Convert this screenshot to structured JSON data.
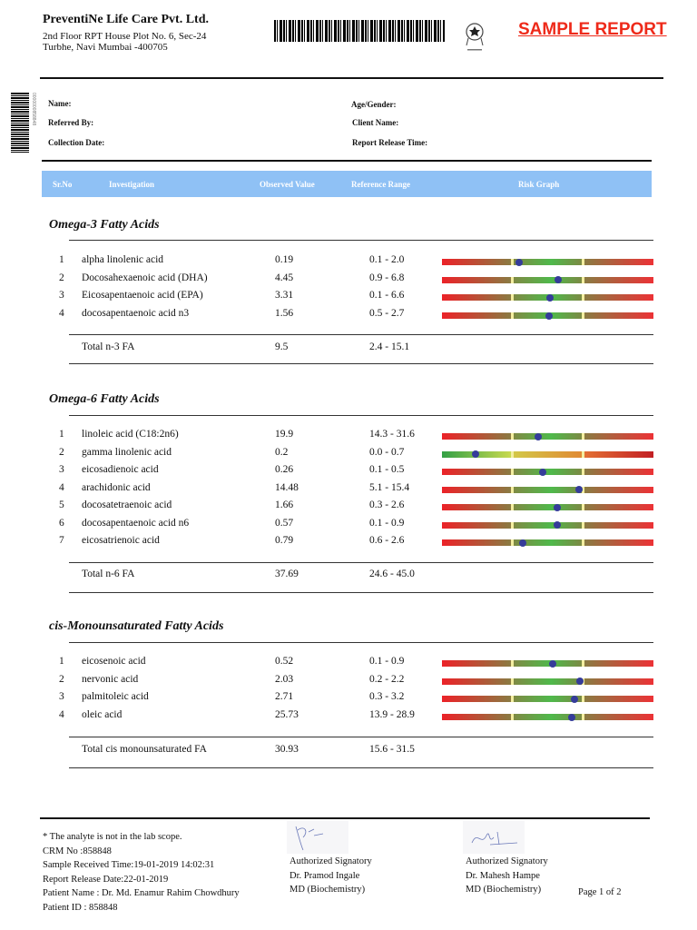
{
  "header": {
    "company": "PreventiNe Life Care Pvt. Ltd.",
    "address": "2nd Floor RPT House Plot No. 6, Sec-24 Turbhe, Navi Mumbai -400705",
    "stamp": "SAMPLE REPORT",
    "side_barcode_number": "0000000858848"
  },
  "patient_labels": {
    "name": "Name:",
    "referred_by": "Referred By:",
    "collection_date": "Collection Date:",
    "age_gender": "Age/Gender:",
    "client_name": "Client Name:",
    "release_time": "Report Release Time:"
  },
  "table_header": {
    "sr": "Sr.No",
    "investigation": "Investigation",
    "observed": "Observed Value",
    "reference": "Reference Range",
    "risk": "Risk Graph"
  },
  "risk_colors": {
    "low": "#ec2228",
    "normal": "#4fb94b",
    "marker": "#353c9a"
  },
  "sections": [
    {
      "title": "Omega-3 Fatty Acids",
      "rows": [
        {
          "sr": "1",
          "name": "alpha linolenic acid",
          "value": "0.19",
          "range": "0.1 - 2.0",
          "marker": 0.365,
          "scale": "normal"
        },
        {
          "sr": "2",
          "name": "Docosahexaenoic acid (DHA)",
          "value": "4.45",
          "range": "0.9 - 6.8",
          "marker": 0.55,
          "scale": "normal"
        },
        {
          "sr": "3",
          "name": "Eicosapentaenoic acid (EPA)",
          "value": "3.31",
          "range": "0.1 - 6.6",
          "marker": 0.51,
          "scale": "normal"
        },
        {
          "sr": "4",
          "name": "docosapentaenoic acid n3",
          "value": "1.56",
          "range": "0.5 - 2.7",
          "marker": 0.506,
          "scale": "normal"
        }
      ],
      "total": {
        "name": "Total n-3 FA",
        "value": "9.5",
        "range": "2.4 - 15.1"
      }
    },
    {
      "title": "Omega-6 Fatty Acids",
      "rows": [
        {
          "sr": "1",
          "name": "linoleic acid (C18:2n6)",
          "value": "19.9",
          "range": "14.3 - 31.6",
          "marker": 0.455,
          "scale": "normal"
        },
        {
          "sr": "2",
          "name": "gamma linolenic acid",
          "value": "0.2",
          "range": "0.0 - 0.7",
          "marker": 0.16,
          "scale": "alt"
        },
        {
          "sr": "3",
          "name": "eicosadienoic acid",
          "value": "0.26",
          "range": "0.1 - 0.5",
          "marker": 0.477,
          "scale": "normal"
        },
        {
          "sr": "4",
          "name": "arachidonic acid",
          "value": "14.48",
          "range": "5.1 - 15.4",
          "marker": 0.65,
          "scale": "normal"
        },
        {
          "sr": "5",
          "name": "docosatetraenoic acid",
          "value": "1.66",
          "range": "0.3 - 2.6",
          "marker": 0.543,
          "scale": "normal"
        },
        {
          "sr": "6",
          "name": "docosapentaenoic acid n6",
          "value": "0.57",
          "range": "0.1 - 0.9",
          "marker": 0.543,
          "scale": "normal"
        },
        {
          "sr": "7",
          "name": "eicosatrienoic acid",
          "value": "0.79",
          "range": "0.6 - 2.6",
          "marker": 0.38,
          "scale": "normal"
        }
      ],
      "total": {
        "name": "Total n-6 FA",
        "value": "37.69",
        "range": "24.6 - 45.0"
      }
    },
    {
      "title": "cis-Monounsaturated Fatty Acids",
      "rows": [
        {
          "sr": "1",
          "name": "eicosenoic acid",
          "value": "0.52",
          "range": "0.1 - 0.9",
          "marker": 0.522,
          "scale": "normal"
        },
        {
          "sr": "2",
          "name": "nervonic acid",
          "value": "2.03",
          "range": "0.2 - 2.2",
          "marker": 0.652,
          "scale": "normal"
        },
        {
          "sr": "3",
          "name": "palmitoleic acid",
          "value": "2.71",
          "range": "0.3 - 3.2",
          "marker": 0.627,
          "scale": "normal"
        },
        {
          "sr": "4",
          "name": "oleic acid",
          "value": "25.73",
          "range": "13.9 - 28.9",
          "marker": 0.614,
          "scale": "normal"
        }
      ],
      "total": {
        "name": "Total cis monounsaturated FA",
        "value": "30.93",
        "range": "15.6 - 31.5"
      }
    }
  ],
  "footer": {
    "note": "* The analyte is not in the lab scope.",
    "crm": "CRM No :858848",
    "received": "Sample Received Time:19-01-2019 14:02:31",
    "release": "Report Release Date:22-01-2019",
    "patient_name": "Patient Name : Dr. Md. Enamur Rahim Chowdhury",
    "patient_id": "Patient ID : 858848",
    "signatories": [
      {
        "title": "Authorized Signatory",
        "name": "Dr. Pramod Ingale",
        "degree": "MD (Biochemistry)"
      },
      {
        "title": "Authorized Signatory",
        "name": "Dr. Mahesh Hampe",
        "degree": "MD (Biochemistry)"
      }
    ],
    "page": "Page 1 of  2"
  }
}
